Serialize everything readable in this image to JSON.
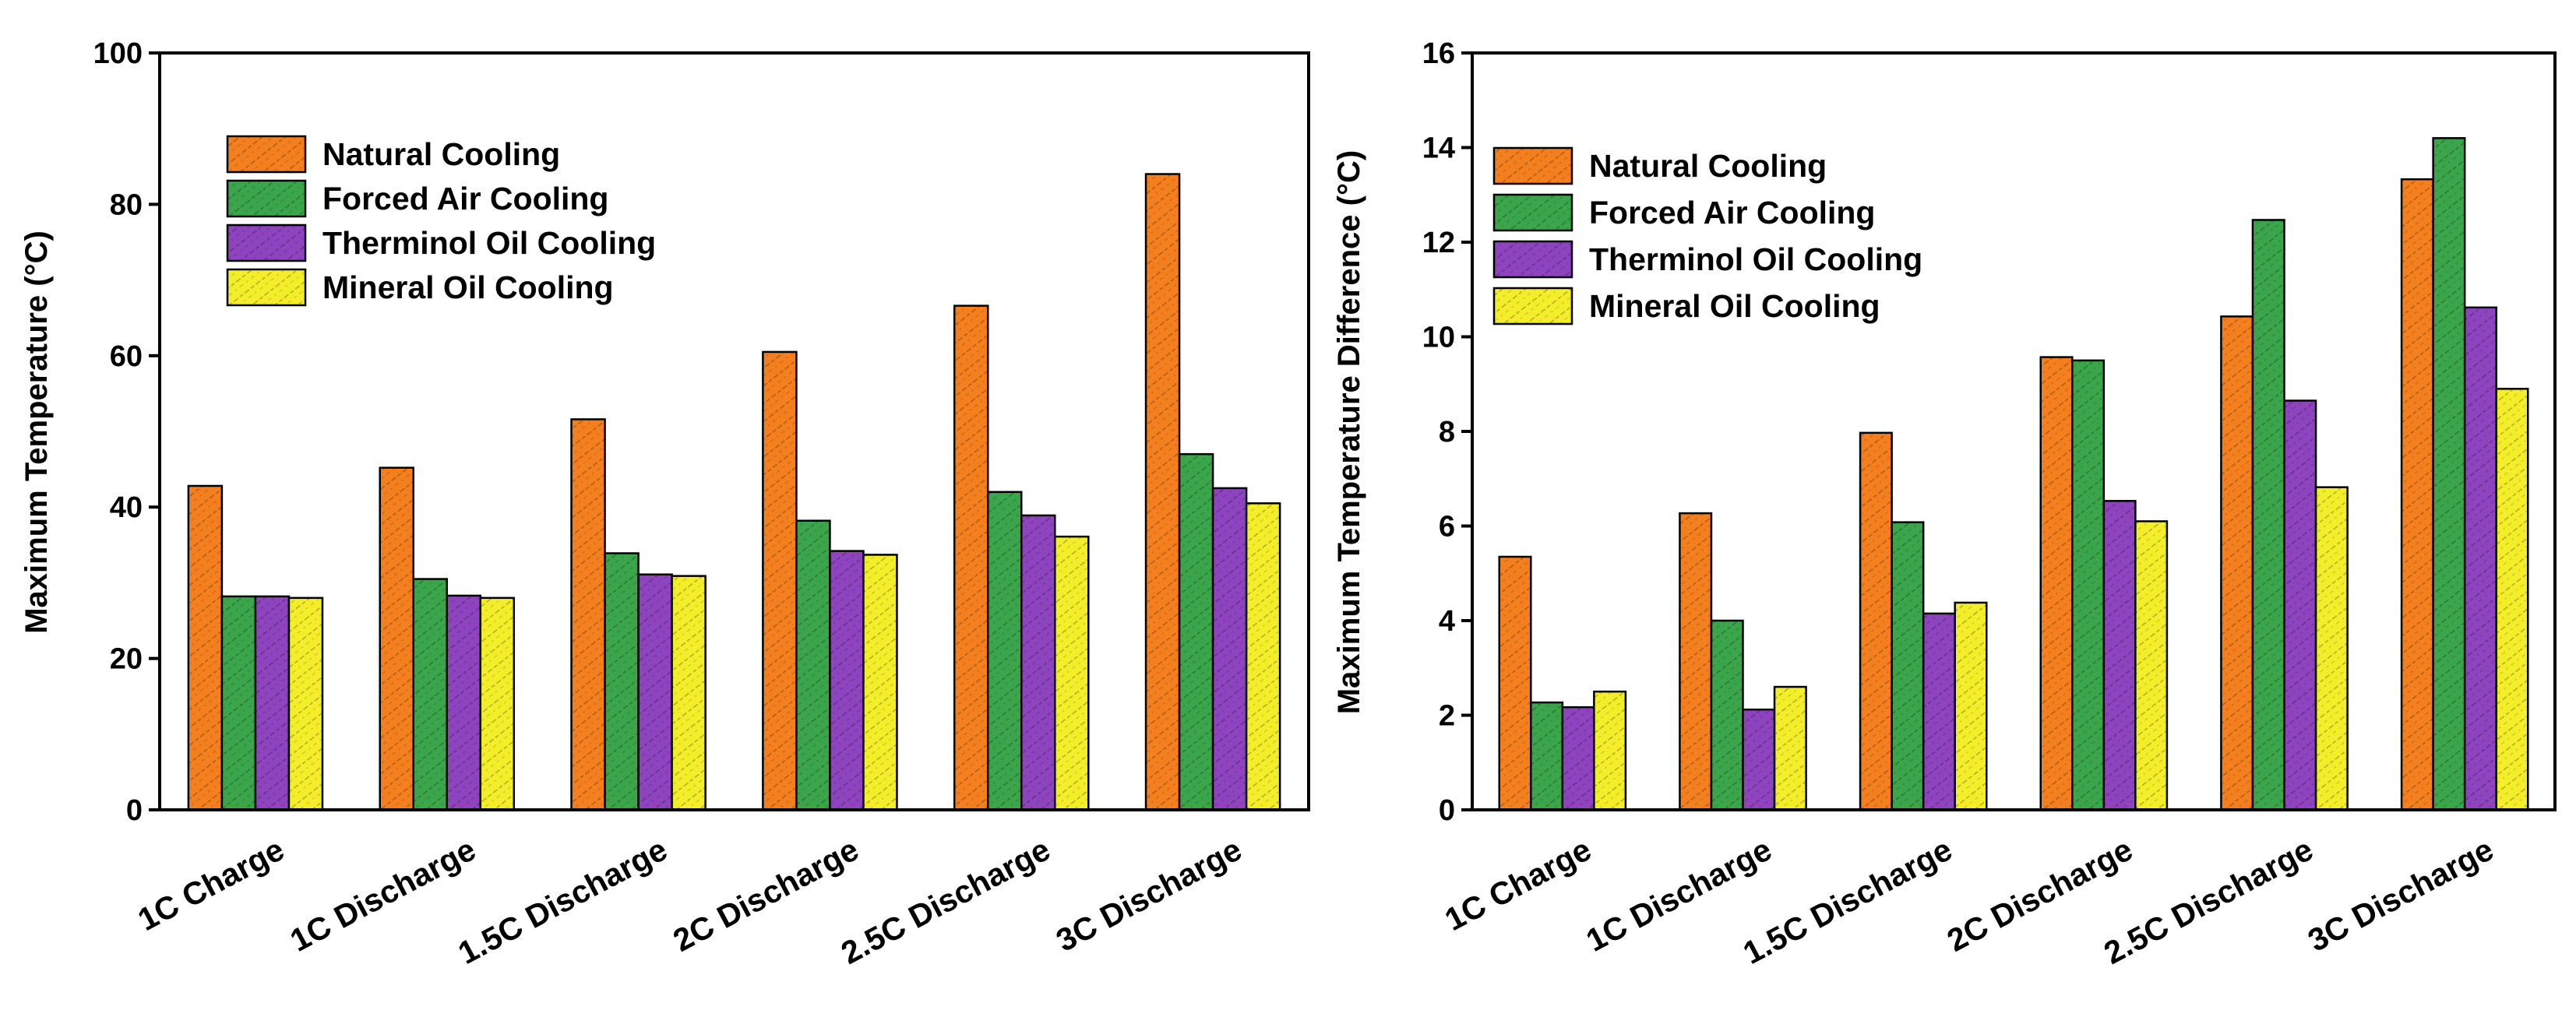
{
  "chart_data": [
    {
      "type": "bar",
      "title": "",
      "xlabel": "",
      "ylabel": "Maximum Temperature (°C)",
      "ylim": [
        0,
        100
      ],
      "yticks": [
        0,
        20,
        40,
        60,
        80,
        100
      ],
      "grid": false,
      "legend_position": "top-left",
      "categories": [
        "1C Charge",
        "1C Discharge",
        "1.5C Discharge",
        "2C Discharge",
        "2.5C Discharge",
        "3C Discharge"
      ],
      "series": [
        {
          "name": "Natural Cooling",
          "color": "#f47f1e",
          "values": [
            42.8,
            45.2,
            51.6,
            60.5,
            66.6,
            84.0
          ]
        },
        {
          "name": "Forced Air Cooling",
          "color": "#3aa54a",
          "values": [
            28.2,
            30.5,
            33.9,
            38.2,
            42.0,
            47.0
          ]
        },
        {
          "name": "Therminol Oil Cooling",
          "color": "#8e43bf",
          "values": [
            28.2,
            28.3,
            31.1,
            34.2,
            38.9,
            42.5
          ]
        },
        {
          "name": "Mineral Oil Cooling",
          "color": "#f4ee2a",
          "values": [
            28.0,
            28.0,
            30.9,
            33.7,
            36.1,
            40.5
          ]
        }
      ]
    },
    {
      "type": "bar",
      "title": "",
      "xlabel": "",
      "ylabel": "Maximum Temperature Difference (°C)",
      "ylim": [
        0,
        16
      ],
      "yticks": [
        0,
        2,
        4,
        6,
        8,
        10,
        12,
        14,
        16
      ],
      "grid": false,
      "legend_position": "top-left",
      "categories": [
        "1C Charge",
        "1C Discharge",
        "1.5C Discharge",
        "2C Discharge",
        "2.5C Discharge",
        "3C Discharge"
      ],
      "series": [
        {
          "name": "Natural Cooling",
          "color": "#f47f1e",
          "values": [
            5.35,
            6.27,
            7.97,
            9.57,
            10.43,
            13.33
          ]
        },
        {
          "name": "Forced Air Cooling",
          "color": "#3aa54a",
          "values": [
            2.27,
            4.0,
            6.08,
            9.5,
            12.47,
            14.2
          ]
        },
        {
          "name": "Therminol Oil Cooling",
          "color": "#8e43bf",
          "values": [
            2.17,
            2.12,
            4.15,
            6.53,
            8.65,
            10.62
          ]
        },
        {
          "name": "Mineral Oil Cooling",
          "color": "#f4ee2a",
          "values": [
            2.5,
            2.6,
            4.38,
            6.1,
            6.82,
            8.9
          ]
        }
      ]
    }
  ]
}
